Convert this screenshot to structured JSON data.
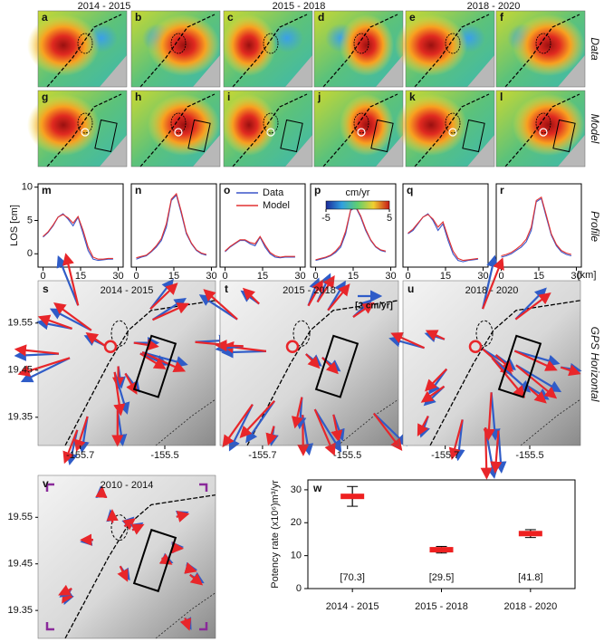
{
  "column_headers": [
    "2014 - 2015",
    "2015 - 2018",
    "2018 - 2020"
  ],
  "row_labels": {
    "data": "Data",
    "model": "Model",
    "profile": "Profile",
    "gps": "GPS Horizontal"
  },
  "map_letters": [
    "a",
    "b",
    "c",
    "d",
    "e",
    "f",
    "g",
    "h",
    "i",
    "j",
    "k",
    "l"
  ],
  "colorbar": {
    "title": "cm/yr",
    "lim": [
      -5,
      5
    ],
    "ticks": [
      -5,
      5
    ]
  },
  "x_unit": "[km]",
  "gps": {
    "panels": [
      {
        "letter": "s",
        "title": "2014 - 2015"
      },
      {
        "letter": "t",
        "title": "2015 - 2018"
      },
      {
        "letter": "u",
        "title": "2018 - 2020"
      },
      {
        "letter": "v",
        "title": "2010 - 2014"
      }
    ],
    "latlim": [
      19.29,
      19.64
    ],
    "lonlim": [
      -155.8,
      -155.38
    ],
    "lat_ticks": [
      19.55,
      19.45,
      19.35
    ],
    "lon_ticks": [
      -155.7,
      -155.5
    ],
    "scale_label": "[2 cm/yr]"
  },
  "chart_data": [
    {
      "type": "line",
      "letter": "m",
      "ylabel": "LOS [cm]",
      "x": [
        0,
        2,
        4,
        6,
        8,
        10,
        12,
        14,
        16,
        18,
        20,
        22,
        24,
        26,
        28
      ],
      "series": [
        {
          "name": "Data",
          "color": "#3a55c8",
          "values": [
            2.5,
            3.2,
            4.2,
            5.5,
            6,
            5.2,
            4.2,
            5.5,
            3,
            0.5,
            -0.8,
            -1,
            -0.9,
            -0.8,
            -0.8
          ]
        },
        {
          "name": "Model",
          "color": "#e23030",
          "values": [
            2.6,
            3.3,
            4.3,
            5.5,
            5.9,
            5.4,
            4.6,
            5.6,
            3.5,
            1,
            -0.5,
            -0.8,
            -0.8,
            -0.7,
            -0.7
          ]
        }
      ],
      "xlim": [
        -2,
        32
      ],
      "xticks": [
        0,
        15,
        30
      ],
      "ylim": [
        -2,
        10.5
      ],
      "yticks": [
        0,
        5,
        10
      ]
    },
    {
      "type": "line",
      "letter": "n",
      "x": [
        0,
        2,
        4,
        6,
        8,
        10,
        12,
        14,
        16,
        18,
        20,
        22,
        24,
        26,
        28
      ],
      "series": [
        {
          "name": "Data",
          "color": "#3a55c8",
          "values": [
            -0.8,
            -0.5,
            -0.3,
            0.3,
            1,
            2,
            4,
            8,
            8.8,
            6,
            3,
            1.5,
            0.5,
            0,
            -0.2
          ]
        },
        {
          "name": "Model",
          "color": "#e23030",
          "values": [
            -0.6,
            -0.4,
            -0.2,
            0.4,
            1.2,
            2.3,
            4.5,
            8.2,
            9,
            6.3,
            3.2,
            1.6,
            0.6,
            0.1,
            -0.1
          ]
        }
      ],
      "xlim": [
        -2,
        32
      ],
      "xticks": [
        0,
        15,
        30
      ],
      "ylim": [
        -2,
        10.5
      ]
    },
    {
      "type": "line",
      "letter": "o",
      "legend": "upper right",
      "x": [
        0,
        2,
        4,
        6,
        8,
        10,
        12,
        14,
        16,
        18,
        20,
        22,
        24,
        26,
        28
      ],
      "series": [
        {
          "name": "Data",
          "color": "#3a55c8",
          "values": [
            0.3,
            1,
            1.5,
            2,
            2,
            1.5,
            1.2,
            2.5,
            1,
            0,
            -0.5,
            -0.6,
            -0.5,
            -0.5,
            -0.5
          ]
        },
        {
          "name": "Model",
          "color": "#e23030",
          "values": [
            0.4,
            1.1,
            1.6,
            2.1,
            2.1,
            1.7,
            1.5,
            2.6,
            1.3,
            0.2,
            -0.3,
            -0.5,
            -0.4,
            -0.4,
            -0.4
          ]
        }
      ],
      "xlim": [
        -2,
        32
      ],
      "xticks": [
        0,
        15,
        30
      ],
      "ylim": [
        -2,
        10.5
      ]
    },
    {
      "type": "line",
      "letter": "p",
      "x": [
        0,
        2,
        4,
        6,
        8,
        10,
        12,
        14,
        16,
        18,
        20,
        22,
        24,
        26,
        28
      ],
      "series": [
        {
          "name": "Data",
          "color": "#3a55c8",
          "values": [
            -1,
            -0.8,
            -0.6,
            -0.3,
            0.2,
            1,
            3,
            6.5,
            7,
            5.5,
            3.5,
            2,
            1,
            0.5,
            0.3
          ]
        },
        {
          "name": "Model",
          "color": "#e23030",
          "values": [
            -0.9,
            -0.7,
            -0.5,
            -0.2,
            0.4,
            1.3,
            3.4,
            6.6,
            7.1,
            5.7,
            3.7,
            2.1,
            1.1,
            0.6,
            0.4
          ]
        }
      ],
      "xlim": [
        -2,
        32
      ],
      "xticks": [
        0,
        15,
        30
      ],
      "ylim": [
        -2,
        10.5
      ]
    },
    {
      "type": "line",
      "letter": "q",
      "x": [
        0,
        2,
        4,
        6,
        8,
        10,
        12,
        14,
        16,
        18,
        20,
        22,
        24,
        26,
        28
      ],
      "series": [
        {
          "name": "Data",
          "color": "#3a55c8",
          "values": [
            3,
            3.5,
            4.5,
            5.5,
            6,
            5,
            3.5,
            4.5,
            2,
            0,
            -1,
            -1.2,
            -1,
            -0.9,
            -0.8
          ]
        },
        {
          "name": "Model",
          "color": "#e23030",
          "values": [
            3.1,
            3.7,
            4.6,
            5.5,
            5.9,
            5.2,
            4,
            4.8,
            2.5,
            0.4,
            -0.7,
            -1,
            -0.9,
            -0.8,
            -0.7
          ]
        }
      ],
      "xlim": [
        -2,
        32
      ],
      "xticks": [
        0,
        15,
        30
      ],
      "ylim": [
        -2,
        10.5
      ]
    },
    {
      "type": "line",
      "letter": "r",
      "x": [
        0,
        2,
        4,
        6,
        8,
        10,
        12,
        14,
        16,
        18,
        20,
        22,
        24,
        26,
        28
      ],
      "series": [
        {
          "name": "Data",
          "color": "#3a55c8",
          "values": [
            -0.5,
            -0.3,
            0,
            0.5,
            1,
            1.8,
            3.5,
            7.8,
            8.3,
            5.5,
            2.8,
            1.2,
            0.3,
            -0.1,
            -0.3
          ]
        },
        {
          "name": "Model",
          "color": "#e23030",
          "values": [
            -0.3,
            -0.1,
            0.2,
            0.7,
            1.3,
            2.2,
            4,
            8,
            8.5,
            5.8,
            3,
            1.4,
            0.5,
            0.1,
            -0.1
          ]
        }
      ],
      "xlim": [
        -2,
        32
      ],
      "xticks": [
        0,
        15,
        30
      ],
      "ylim": [
        -2,
        10.5
      ]
    },
    {
      "type": "errorbar",
      "letter": "w",
      "ylabel": "Potency rate (x10⁶)m³/yr",
      "categories": [
        "2014 - 2015",
        "2015 - 2018",
        "2018 - 2020"
      ],
      "values": [
        28,
        11.8,
        16.7
      ],
      "errors": [
        3,
        1,
        1.2
      ],
      "color": "#ee2020",
      "annotations": [
        "[70.3]",
        "[29.5]",
        "[41.8]"
      ],
      "ylim": [
        0,
        33
      ],
      "yticks": [
        0,
        10,
        20,
        30
      ]
    }
  ]
}
